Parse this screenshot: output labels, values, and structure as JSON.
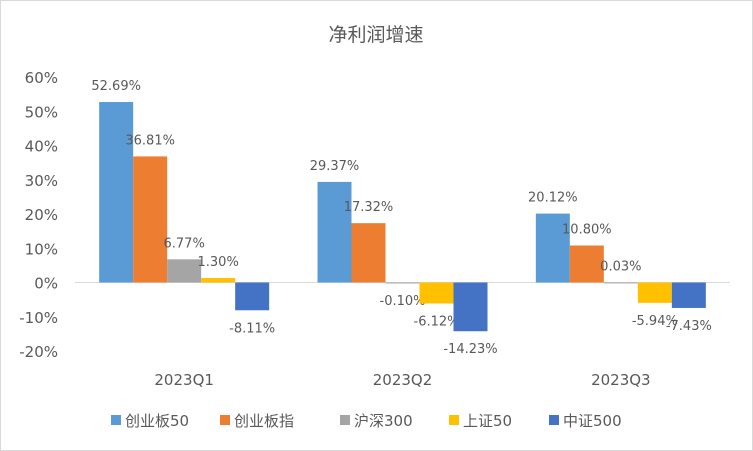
{
  "chart_data": {
    "type": "bar",
    "title": "净利润增速",
    "categories": [
      "2023Q1",
      "2023Q2",
      "2023Q3"
    ],
    "series": [
      {
        "name": "创业板50",
        "color": "#5B9BD5",
        "values": [
          52.69,
          29.37,
          20.12
        ],
        "labels": [
          "52.69%",
          "29.37%",
          "20.12%"
        ]
      },
      {
        "name": "创业板指",
        "color": "#ED7D31",
        "values": [
          36.81,
          17.32,
          10.8
        ],
        "labels": [
          "36.81%",
          "17.32%",
          "10.80%"
        ]
      },
      {
        "name": "沪深300",
        "color": "#A5A5A5",
        "values": [
          6.77,
          -0.1,
          0.03
        ],
        "labels": [
          "6.77%",
          "-0.10%",
          "0.03%"
        ]
      },
      {
        "name": "上证50",
        "color": "#FFC000",
        "values": [
          1.3,
          -6.12,
          -5.94
        ],
        "labels": [
          "1.30%",
          "-6.12%",
          "-5.94%"
        ]
      },
      {
        "name": "中证500",
        "color": "#4472C4",
        "values": [
          -8.11,
          -14.23,
          -7.43
        ],
        "labels": [
          "-8.11%",
          "-14.23%",
          "-7.43%"
        ]
      }
    ],
    "ylim": [
      -20,
      60
    ],
    "yticks": [
      "-20%",
      "-10%",
      "0%",
      "10%",
      "20%",
      "30%",
      "40%",
      "50%",
      "60%"
    ],
    "ytick_values": [
      -20,
      -10,
      0,
      10,
      20,
      30,
      40,
      50,
      60
    ],
    "grid": false,
    "legend": "bottom"
  }
}
